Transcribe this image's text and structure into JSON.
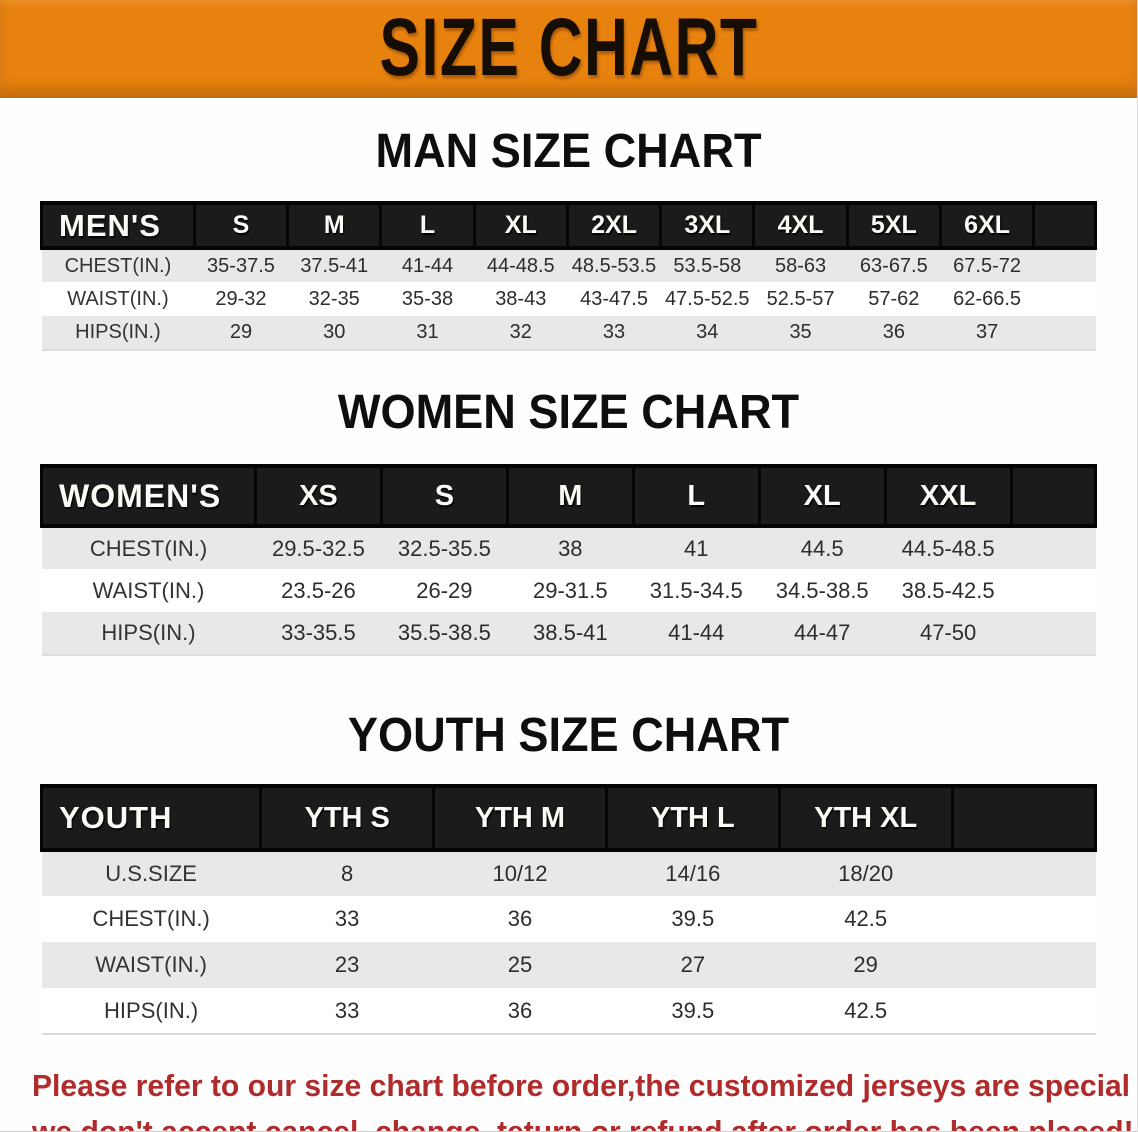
{
  "banner": {
    "title": "SIZE CHART",
    "background_color": "#E8820F",
    "text_color": "#160E05"
  },
  "colors": {
    "table_header_bg": "#1B1B1B",
    "table_header_text": "#FBFBF6",
    "row_stripe": "#E8E8E8",
    "disclaimer_text": "#B02B2B"
  },
  "sections": [
    {
      "heading": "MAN SIZE CHART",
      "table": {
        "group_label": "MEN'S",
        "columns": [
          "S",
          "M",
          "L",
          "XL",
          "2XL",
          "3XL",
          "4XL",
          "5XL",
          "6XL"
        ],
        "rows": [
          {
            "label": "CHEST(IN.)",
            "values": [
              "35-37.5",
              "37.5-41",
              "41-44",
              "44-48.5",
              "48.5-53.5",
              "53.5-58",
              "58-63",
              "63-67.5",
              "67.5-72"
            ]
          },
          {
            "label": "WAIST(IN.)",
            "values": [
              "29-32",
              "32-35",
              "35-38",
              "38-43",
              "43-47.5",
              "47.5-52.5",
              "52.5-57",
              "57-62",
              "62-66.5"
            ]
          },
          {
            "label": "HIPS(IN.)",
            "values": [
              "29",
              "30",
              "31",
              "32",
              "33",
              "34",
              "35",
              "36",
              "37"
            ]
          }
        ]
      }
    },
    {
      "heading": "WOMEN SIZE CHART",
      "table": {
        "group_label": "WOMEN'S",
        "columns": [
          "XS",
          "S",
          "M",
          "L",
          "XL",
          "XXL"
        ],
        "rows": [
          {
            "label": "CHEST(IN.)",
            "values": [
              "29.5-32.5",
              "32.5-35.5",
              "38",
              "41",
              "44.5",
              "44.5-48.5"
            ]
          },
          {
            "label": "WAIST(IN.)",
            "values": [
              "23.5-26",
              "26-29",
              "29-31.5",
              "31.5-34.5",
              "34.5-38.5",
              "38.5-42.5"
            ]
          },
          {
            "label": "HIPS(IN.)",
            "values": [
              "33-35.5",
              "35.5-38.5",
              "38.5-41",
              "41-44",
              "44-47",
              "47-50"
            ]
          }
        ]
      }
    },
    {
      "heading": "YOUTH SIZE CHART",
      "table": {
        "group_label": "YOUTH",
        "columns": [
          "YTH S",
          "YTH M",
          "YTH L",
          "YTH XL"
        ],
        "rows": [
          {
            "label": "U.S.SIZE",
            "values": [
              "8",
              "10/12",
              "14/16",
              "18/20"
            ]
          },
          {
            "label": "CHEST(IN.)",
            "values": [
              "33",
              "36",
              "39.5",
              "42.5"
            ]
          },
          {
            "label": "WAIST(IN.)",
            "values": [
              "23",
              "25",
              "27",
              "29"
            ]
          },
          {
            "label": "HIPS(IN.)",
            "values": [
              "33",
              "36",
              "39.5",
              "42.5"
            ]
          }
        ]
      }
    }
  ],
  "disclaimer": {
    "line1": "Please refer to our size chart before order,the customized jerseys are special products,",
    "line2": "we don't accept cancel, change, teturn or refund after order has been placed!"
  }
}
